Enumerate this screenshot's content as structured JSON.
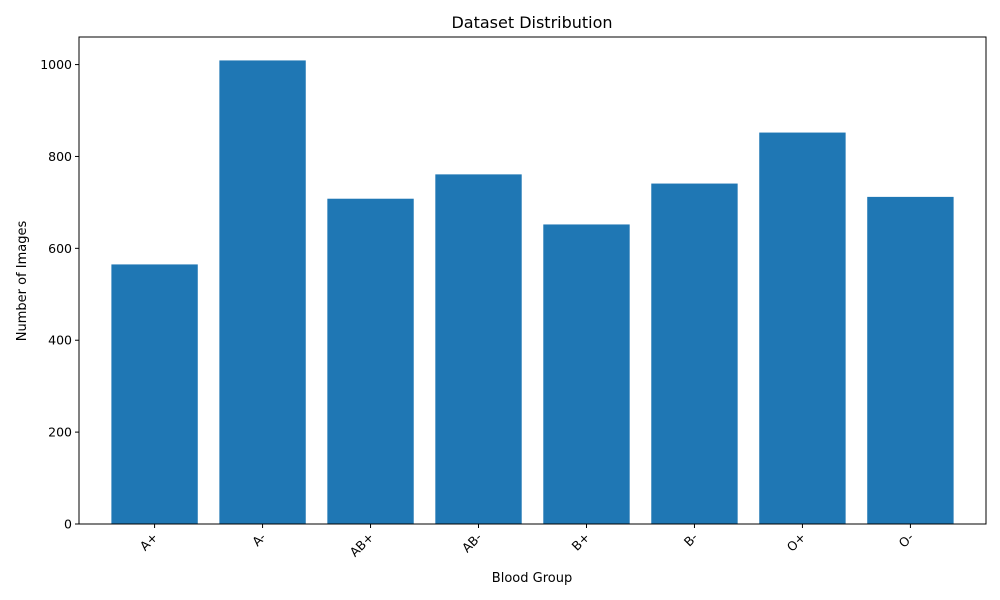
{
  "chart_data": {
    "type": "bar",
    "title": "Dataset Distribution",
    "xlabel": "Blood Group",
    "ylabel": "Number of Images",
    "categories": [
      "A+",
      "A-",
      "AB+",
      "AB-",
      "B+",
      "B-",
      "O+",
      "O-"
    ],
    "values": [
      565,
      1009,
      708,
      761,
      652,
      741,
      852,
      712
    ],
    "ylim": [
      0,
      1060
    ],
    "yticks": [
      0,
      200,
      400,
      600,
      800,
      1000
    ],
    "bar_color": "#1f77b4",
    "grid": false,
    "xtick_rotation_deg": 45
  }
}
